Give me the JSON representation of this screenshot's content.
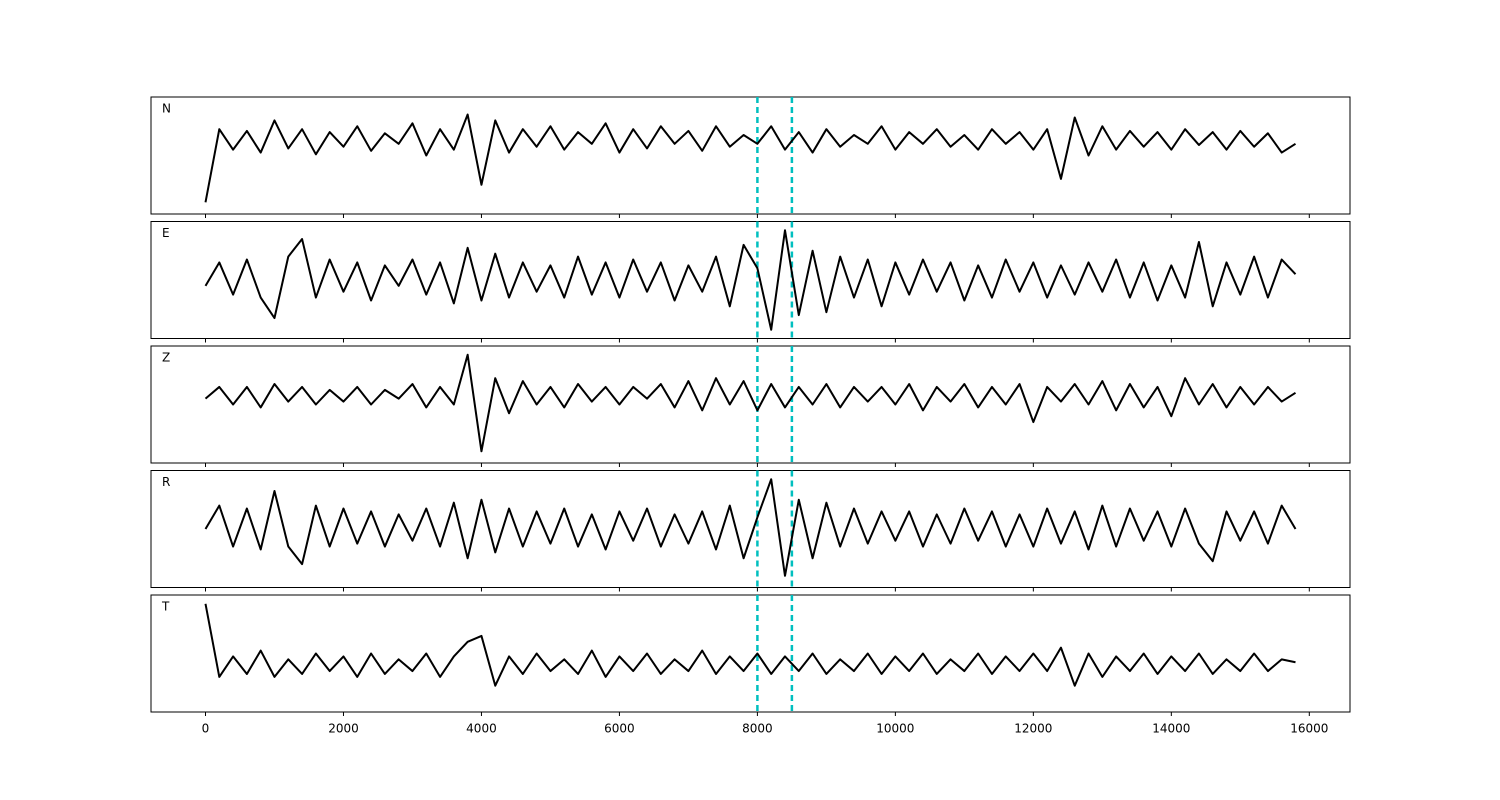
{
  "chart_data": {
    "type": "line",
    "x": [
      0,
      200,
      400,
      600,
      800,
      1000,
      1200,
      1400,
      1600,
      1800,
      2000,
      2200,
      2400,
      2600,
      2800,
      3000,
      3200,
      3400,
      3600,
      3800,
      4000,
      4200,
      4400,
      4600,
      4800,
      5000,
      5200,
      5400,
      5600,
      5800,
      6000,
      6200,
      6400,
      6600,
      6800,
      7000,
      7200,
      7400,
      7600,
      7800,
      8000,
      8200,
      8400,
      8600,
      8800,
      9000,
      9200,
      9400,
      9600,
      9800,
      10000,
      10200,
      10400,
      10600,
      10800,
      11000,
      11200,
      11400,
      11600,
      11800,
      12000,
      12200,
      12400,
      12600,
      12800,
      13000,
      13200,
      13400,
      13600,
      13800,
      14000,
      14200,
      14400,
      14600,
      14800,
      15000,
      15200,
      15400,
      15600,
      15800
    ],
    "series": [
      {
        "name": "N",
        "color": "#000000",
        "values": [
          -0.8,
          0.45,
          0.1,
          0.42,
          0.05,
          0.6,
          0.12,
          0.45,
          0.02,
          0.4,
          0.15,
          0.5,
          0.08,
          0.38,
          0.2,
          0.55,
          0.0,
          0.45,
          0.1,
          0.7,
          -0.5,
          0.6,
          0.05,
          0.45,
          0.15,
          0.5,
          0.1,
          0.4,
          0.2,
          0.55,
          0.05,
          0.45,
          0.12,
          0.5,
          0.2,
          0.42,
          0.08,
          0.5,
          0.15,
          0.35,
          0.2,
          0.5,
          0.1,
          0.4,
          0.05,
          0.45,
          0.15,
          0.35,
          0.2,
          0.5,
          0.1,
          0.4,
          0.2,
          0.45,
          0.15,
          0.35,
          0.1,
          0.45,
          0.2,
          0.4,
          0.1,
          0.45,
          -0.4,
          0.65,
          0.0,
          0.5,
          0.1,
          0.42,
          0.15,
          0.4,
          0.1,
          0.45,
          0.18,
          0.4,
          0.1,
          0.42,
          0.15,
          0.38,
          0.05,
          0.2
        ]
      },
      {
        "name": "E",
        "color": "#000000",
        "values": [
          -0.1,
          0.3,
          -0.25,
          0.35,
          -0.3,
          -0.65,
          0.4,
          0.7,
          -0.3,
          0.35,
          -0.2,
          0.3,
          -0.35,
          0.25,
          -0.1,
          0.35,
          -0.25,
          0.3,
          -0.4,
          0.55,
          -0.35,
          0.45,
          -0.3,
          0.3,
          -0.2,
          0.25,
          -0.3,
          0.4,
          -0.25,
          0.3,
          -0.3,
          0.35,
          -0.2,
          0.3,
          -0.35,
          0.25,
          -0.2,
          0.4,
          -0.45,
          0.6,
          0.2,
          -0.85,
          0.85,
          -0.6,
          0.5,
          -0.55,
          0.4,
          -0.3,
          0.35,
          -0.45,
          0.3,
          -0.25,
          0.35,
          -0.2,
          0.3,
          -0.35,
          0.25,
          -0.3,
          0.35,
          -0.2,
          0.3,
          -0.3,
          0.25,
          -0.25,
          0.3,
          -0.2,
          0.35,
          -0.3,
          0.3,
          -0.35,
          0.25,
          -0.3,
          0.65,
          -0.45,
          0.3,
          -0.25,
          0.4,
          -0.3,
          0.35,
          0.1
        ]
      },
      {
        "name": "Z",
        "color": "#000000",
        "values": [
          0.1,
          0.3,
          0.0,
          0.3,
          -0.05,
          0.35,
          0.05,
          0.3,
          0.0,
          0.25,
          0.05,
          0.3,
          0.0,
          0.25,
          0.1,
          0.35,
          -0.05,
          0.3,
          0.0,
          0.85,
          -0.8,
          0.45,
          -0.15,
          0.4,
          0.0,
          0.3,
          -0.05,
          0.35,
          0.05,
          0.3,
          0.0,
          0.3,
          0.1,
          0.35,
          -0.05,
          0.4,
          -0.1,
          0.45,
          0.0,
          0.4,
          -0.1,
          0.35,
          -0.05,
          0.3,
          0.0,
          0.35,
          -0.05,
          0.3,
          0.05,
          0.3,
          0.0,
          0.35,
          -0.1,
          0.3,
          0.05,
          0.35,
          -0.05,
          0.3,
          0.0,
          0.35,
          -0.3,
          0.3,
          0.05,
          0.35,
          0.0,
          0.4,
          -0.1,
          0.35,
          -0.05,
          0.3,
          -0.2,
          0.45,
          0.0,
          0.35,
          -0.05,
          0.3,
          0.0,
          0.3,
          0.05,
          0.2
        ]
      },
      {
        "name": "R",
        "color": "#000000",
        "values": [
          0.0,
          0.4,
          -0.3,
          0.35,
          -0.35,
          0.65,
          -0.3,
          -0.6,
          0.4,
          -0.3,
          0.35,
          -0.25,
          0.3,
          -0.3,
          0.25,
          -0.2,
          0.35,
          -0.3,
          0.45,
          -0.5,
          0.5,
          -0.4,
          0.35,
          -0.3,
          0.3,
          -0.25,
          0.35,
          -0.3,
          0.25,
          -0.35,
          0.3,
          -0.2,
          0.35,
          -0.3,
          0.25,
          -0.25,
          0.3,
          -0.35,
          0.4,
          -0.5,
          0.2,
          0.85,
          -0.8,
          0.5,
          -0.5,
          0.45,
          -0.3,
          0.35,
          -0.25,
          0.3,
          -0.2,
          0.3,
          -0.3,
          0.25,
          -0.25,
          0.35,
          -0.2,
          0.3,
          -0.3,
          0.25,
          -0.3,
          0.35,
          -0.25,
          0.3,
          -0.35,
          0.4,
          -0.3,
          0.35,
          -0.2,
          0.3,
          -0.3,
          0.35,
          -0.25,
          -0.55,
          0.3,
          -0.2,
          0.3,
          -0.25,
          0.4,
          0.0
        ]
      },
      {
        "name": "T",
        "color": "#000000",
        "values": [
          0.85,
          -0.4,
          -0.05,
          -0.35,
          0.05,
          -0.4,
          -0.1,
          -0.35,
          0.0,
          -0.3,
          -0.05,
          -0.4,
          0.0,
          -0.35,
          -0.1,
          -0.3,
          0.0,
          -0.4,
          -0.05,
          0.2,
          0.3,
          -0.55,
          -0.05,
          -0.35,
          0.0,
          -0.3,
          -0.1,
          -0.35,
          0.05,
          -0.4,
          -0.05,
          -0.3,
          0.0,
          -0.35,
          -0.1,
          -0.3,
          0.05,
          -0.35,
          -0.05,
          -0.3,
          0.0,
          -0.35,
          -0.05,
          -0.3,
          0.0,
          -0.35,
          -0.1,
          -0.3,
          0.0,
          -0.35,
          -0.05,
          -0.3,
          0.0,
          -0.35,
          -0.1,
          -0.3,
          0.0,
          -0.35,
          -0.05,
          -0.3,
          0.0,
          -0.3,
          0.1,
          -0.55,
          0.0,
          -0.4,
          -0.05,
          -0.3,
          0.0,
          -0.35,
          -0.05,
          -0.3,
          0.0,
          -0.35,
          -0.1,
          -0.3,
          0.0,
          -0.3,
          -0.1,
          -0.15
        ]
      }
    ],
    "vlines": [
      8000,
      8500
    ],
    "vline_color": "#00bfbf",
    "xlim": [
      -790,
      16590
    ],
    "ylim": [
      -1,
      1
    ],
    "xticks": [
      0,
      2000,
      4000,
      6000,
      8000,
      10000,
      12000,
      14000,
      16000
    ]
  }
}
